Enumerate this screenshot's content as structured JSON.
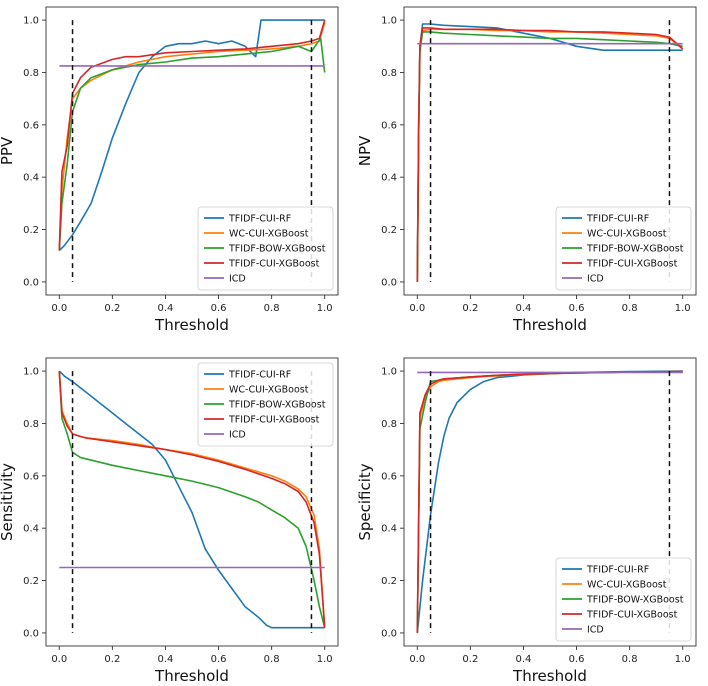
{
  "chart_data": [
    {
      "type": "line",
      "ylabel": "PPV",
      "xlabel": "Threshold",
      "xlim": [
        0,
        1
      ],
      "ylim": [
        0,
        1
      ],
      "xticks": [
        "0.0",
        "0.2",
        "0.4",
        "0.6",
        "0.8",
        "1.0"
      ],
      "yticks": [
        "0.0",
        "0.2",
        "0.4",
        "0.6",
        "0.8",
        "1.0"
      ],
      "legend_position": "lower-right",
      "vlines": [
        0.05,
        0.95
      ],
      "series": [
        {
          "name": "TFIDF-CUI-RF",
          "x": [
            0,
            0.02,
            0.05,
            0.08,
            0.12,
            0.16,
            0.2,
            0.25,
            0.3,
            0.35,
            0.4,
            0.45,
            0.5,
            0.55,
            0.6,
            0.65,
            0.7,
            0.74,
            0.76,
            0.78,
            0.82,
            0.9,
            0.96,
            1.0
          ],
          "y": [
            0.12,
            0.14,
            0.18,
            0.23,
            0.3,
            0.42,
            0.55,
            0.68,
            0.8,
            0.86,
            0.9,
            0.91,
            0.91,
            0.92,
            0.91,
            0.92,
            0.9,
            0.86,
            1.0,
            1.0,
            1.0,
            1.0,
            1.0,
            1.0
          ]
        },
        {
          "name": "WC-CUI-XGBoost",
          "x": [
            0,
            0.01,
            0.03,
            0.05,
            0.08,
            0.12,
            0.2,
            0.3,
            0.4,
            0.5,
            0.6,
            0.7,
            0.8,
            0.9,
            0.95,
            0.98,
            1.0
          ],
          "y": [
            0.12,
            0.35,
            0.55,
            0.7,
            0.74,
            0.77,
            0.81,
            0.84,
            0.86,
            0.87,
            0.88,
            0.885,
            0.89,
            0.9,
            0.91,
            0.92,
            0.99
          ]
        },
        {
          "name": "TFIDF-BOW-XGBoost",
          "x": [
            0,
            0.01,
            0.03,
            0.05,
            0.08,
            0.12,
            0.2,
            0.3,
            0.4,
            0.5,
            0.6,
            0.7,
            0.8,
            0.9,
            0.95,
            0.97,
            0.985,
            1.0
          ],
          "y": [
            0.12,
            0.3,
            0.45,
            0.65,
            0.74,
            0.78,
            0.81,
            0.83,
            0.84,
            0.855,
            0.86,
            0.87,
            0.88,
            0.9,
            0.88,
            0.91,
            0.93,
            0.8
          ]
        },
        {
          "name": "TFIDF-CUI-XGBoost",
          "x": [
            0,
            0.01,
            0.03,
            0.05,
            0.08,
            0.12,
            0.2,
            0.25,
            0.3,
            0.4,
            0.5,
            0.6,
            0.7,
            0.8,
            0.9,
            0.95,
            0.98,
            1.0
          ],
          "y": [
            0.12,
            0.42,
            0.52,
            0.72,
            0.78,
            0.82,
            0.85,
            0.86,
            0.86,
            0.875,
            0.88,
            0.885,
            0.89,
            0.9,
            0.91,
            0.92,
            0.93,
            1.0
          ]
        },
        {
          "name": "ICD",
          "x": [
            0,
            1.0
          ],
          "y": [
            0.825,
            0.825
          ]
        }
      ]
    },
    {
      "type": "line",
      "ylabel": "NPV",
      "xlabel": "Threshold",
      "xlim": [
        0,
        1
      ],
      "ylim": [
        0,
        1
      ],
      "xticks": [
        "0.0",
        "0.2",
        "0.4",
        "0.6",
        "0.8",
        "1.0"
      ],
      "yticks": [
        "0.0",
        "0.2",
        "0.4",
        "0.6",
        "0.8",
        "1.0"
      ],
      "legend_position": "lower-right",
      "vlines": [
        0.05,
        0.95
      ],
      "series": [
        {
          "name": "TFIDF-CUI-RF",
          "x": [
            0,
            0.005,
            0.01,
            0.02,
            0.05,
            0.1,
            0.2,
            0.3,
            0.4,
            0.5,
            0.6,
            0.7,
            0.8,
            0.9,
            1.0
          ],
          "y": [
            0.0,
            0.6,
            0.9,
            0.985,
            0.985,
            0.98,
            0.975,
            0.97,
            0.95,
            0.93,
            0.9,
            0.885,
            0.885,
            0.885,
            0.885
          ]
        },
        {
          "name": "WC-CUI-XGBoost",
          "x": [
            0,
            0.005,
            0.01,
            0.02,
            0.05,
            0.1,
            0.2,
            0.3,
            0.4,
            0.5,
            0.6,
            0.7,
            0.8,
            0.9,
            0.95,
            1.0
          ],
          "y": [
            0.0,
            0.55,
            0.9,
            0.96,
            0.965,
            0.965,
            0.965,
            0.96,
            0.96,
            0.955,
            0.955,
            0.95,
            0.945,
            0.94,
            0.93,
            0.89
          ]
        },
        {
          "name": "TFIDF-BOW-XGBoost",
          "x": [
            0,
            0.005,
            0.01,
            0.02,
            0.05,
            0.1,
            0.2,
            0.3,
            0.4,
            0.5,
            0.6,
            0.7,
            0.8,
            0.9,
            0.95,
            1.0
          ],
          "y": [
            0.0,
            0.55,
            0.88,
            0.955,
            0.955,
            0.95,
            0.945,
            0.94,
            0.935,
            0.93,
            0.93,
            0.925,
            0.92,
            0.915,
            0.91,
            0.9
          ]
        },
        {
          "name": "TFIDF-CUI-XGBoost",
          "x": [
            0,
            0.005,
            0.01,
            0.02,
            0.05,
            0.1,
            0.2,
            0.3,
            0.4,
            0.5,
            0.6,
            0.7,
            0.8,
            0.9,
            0.95,
            1.0
          ],
          "y": [
            0.0,
            0.55,
            0.9,
            0.97,
            0.97,
            0.965,
            0.965,
            0.965,
            0.96,
            0.96,
            0.955,
            0.955,
            0.95,
            0.945,
            0.935,
            0.89
          ]
        },
        {
          "name": "ICD",
          "x": [
            0,
            1.0
          ],
          "y": [
            0.91,
            0.91
          ]
        }
      ]
    },
    {
      "type": "line",
      "ylabel": "Sensitivity",
      "xlabel": "Threshold",
      "xlim": [
        0,
        1
      ],
      "ylim": [
        0,
        1
      ],
      "xticks": [
        "0.0",
        "0.2",
        "0.4",
        "0.6",
        "0.8",
        "1.0"
      ],
      "yticks": [
        "0.0",
        "0.2",
        "0.4",
        "0.6",
        "0.8",
        "1.0"
      ],
      "legend_position": "top-right",
      "vlines": [
        0.05,
        0.95
      ],
      "series": [
        {
          "name": "TFIDF-CUI-RF",
          "x": [
            0,
            0.02,
            0.05,
            0.1,
            0.15,
            0.2,
            0.25,
            0.3,
            0.35,
            0.4,
            0.45,
            0.5,
            0.55,
            0.6,
            0.65,
            0.7,
            0.75,
            0.78,
            0.8,
            0.85,
            0.9,
            0.95,
            1.0
          ],
          "y": [
            1.0,
            0.98,
            0.96,
            0.92,
            0.88,
            0.84,
            0.8,
            0.76,
            0.72,
            0.66,
            0.56,
            0.46,
            0.32,
            0.24,
            0.17,
            0.1,
            0.06,
            0.03,
            0.02,
            0.02,
            0.02,
            0.02,
            0.02
          ]
        },
        {
          "name": "WC-CUI-XGBoost",
          "x": [
            0,
            0.01,
            0.03,
            0.05,
            0.08,
            0.1,
            0.2,
            0.3,
            0.4,
            0.5,
            0.6,
            0.7,
            0.8,
            0.85,
            0.9,
            0.93,
            0.96,
            0.98,
            1.0
          ],
          "y": [
            1.0,
            0.85,
            0.8,
            0.76,
            0.75,
            0.745,
            0.735,
            0.72,
            0.7,
            0.685,
            0.66,
            0.63,
            0.6,
            0.58,
            0.55,
            0.52,
            0.45,
            0.32,
            0.02
          ]
        },
        {
          "name": "TFIDF-BOW-XGBoost",
          "x": [
            0,
            0.01,
            0.03,
            0.05,
            0.08,
            0.1,
            0.2,
            0.3,
            0.4,
            0.5,
            0.6,
            0.7,
            0.75,
            0.8,
            0.85,
            0.9,
            0.93,
            0.96,
            0.98,
            1.0
          ],
          "y": [
            1.0,
            0.82,
            0.76,
            0.69,
            0.67,
            0.665,
            0.64,
            0.62,
            0.6,
            0.58,
            0.555,
            0.52,
            0.5,
            0.47,
            0.44,
            0.4,
            0.33,
            0.2,
            0.1,
            0.02
          ]
        },
        {
          "name": "TFIDF-CUI-XGBoost",
          "x": [
            0,
            0.01,
            0.03,
            0.05,
            0.08,
            0.1,
            0.2,
            0.3,
            0.4,
            0.5,
            0.6,
            0.7,
            0.8,
            0.85,
            0.9,
            0.93,
            0.96,
            0.98,
            1.0
          ],
          "y": [
            1.0,
            0.84,
            0.79,
            0.76,
            0.75,
            0.745,
            0.73,
            0.715,
            0.7,
            0.68,
            0.655,
            0.625,
            0.59,
            0.57,
            0.54,
            0.5,
            0.42,
            0.3,
            0.02
          ]
        },
        {
          "name": "ICD",
          "x": [
            0,
            1.0
          ],
          "y": [
            0.25,
            0.25
          ]
        }
      ]
    },
    {
      "type": "line",
      "ylabel": "Specificity",
      "xlabel": "Threshold",
      "xlim": [
        0,
        1
      ],
      "ylim": [
        0,
        1
      ],
      "xticks": [
        "0.0",
        "0.2",
        "0.4",
        "0.6",
        "0.8",
        "1.0"
      ],
      "yticks": [
        "0.0",
        "0.2",
        "0.4",
        "0.6",
        "0.8",
        "1.0"
      ],
      "legend_position": "lower-right",
      "vlines": [
        0.05,
        0.95
      ],
      "series": [
        {
          "name": "TFIDF-CUI-RF",
          "x": [
            0,
            0.02,
            0.05,
            0.08,
            0.1,
            0.12,
            0.15,
            0.2,
            0.25,
            0.3,
            0.4,
            0.5,
            0.6,
            0.8,
            1.0
          ],
          "y": [
            0.0,
            0.2,
            0.45,
            0.65,
            0.75,
            0.82,
            0.88,
            0.93,
            0.96,
            0.975,
            0.985,
            0.99,
            0.995,
            0.998,
            1.0
          ]
        },
        {
          "name": "WC-CUI-XGBoost",
          "x": [
            0,
            0.01,
            0.03,
            0.05,
            0.08,
            0.1,
            0.2,
            0.3,
            0.4,
            0.5,
            0.6,
            0.8,
            1.0
          ],
          "y": [
            0.0,
            0.82,
            0.9,
            0.94,
            0.96,
            0.965,
            0.975,
            0.982,
            0.987,
            0.99,
            0.993,
            0.996,
            0.998
          ]
        },
        {
          "name": "TFIDF-BOW-XGBoost",
          "x": [
            0,
            0.01,
            0.03,
            0.05,
            0.08,
            0.1,
            0.2,
            0.3,
            0.4,
            0.5,
            0.6,
            0.8,
            1.0
          ],
          "y": [
            0.0,
            0.78,
            0.88,
            0.96,
            0.965,
            0.97,
            0.978,
            0.984,
            0.988,
            0.991,
            0.993,
            0.996,
            0.998
          ]
        },
        {
          "name": "TFIDF-CUI-XGBoost",
          "x": [
            0,
            0.01,
            0.03,
            0.05,
            0.08,
            0.1,
            0.2,
            0.3,
            0.4,
            0.5,
            0.6,
            0.8,
            1.0
          ],
          "y": [
            0.0,
            0.84,
            0.91,
            0.95,
            0.965,
            0.97,
            0.978,
            0.984,
            0.988,
            0.991,
            0.993,
            0.996,
            0.998
          ]
        },
        {
          "name": "ICD",
          "x": [
            0,
            1.0
          ],
          "y": [
            0.995,
            0.995
          ]
        }
      ]
    }
  ],
  "series_colors": {
    "TFIDF-CUI-RF": "#1f77b4",
    "WC-CUI-XGBoost": "#ff7f0e",
    "TFIDF-BOW-XGBoost": "#2ca02c",
    "TFIDF-CUI-XGBoost": "#d62728",
    "ICD": "#9467bd"
  }
}
